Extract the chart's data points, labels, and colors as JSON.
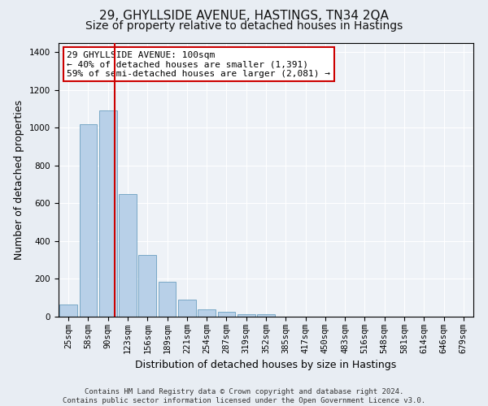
{
  "title": "29, GHYLLSIDE AVENUE, HASTINGS, TN34 2QA",
  "subtitle": "Size of property relative to detached houses in Hastings",
  "xlabel": "Distribution of detached houses by size in Hastings",
  "ylabel": "Number of detached properties",
  "categories": [
    "25sqm",
    "58sqm",
    "90sqm",
    "123sqm",
    "156sqm",
    "189sqm",
    "221sqm",
    "254sqm",
    "287sqm",
    "319sqm",
    "352sqm",
    "385sqm",
    "417sqm",
    "450sqm",
    "483sqm",
    "516sqm",
    "548sqm",
    "581sqm",
    "614sqm",
    "646sqm",
    "679sqm"
  ],
  "values": [
    65,
    1020,
    1090,
    650,
    325,
    185,
    90,
    40,
    25,
    15,
    12,
    0,
    0,
    0,
    0,
    0,
    0,
    0,
    0,
    0,
    0
  ],
  "bar_color": "#b8d0e8",
  "bar_edge_color": "#6a9fc0",
  "vline_color": "#cc0000",
  "vline_xindex": 2.35,
  "annotation_text": "29 GHYLLSIDE AVENUE: 100sqm\n← 40% of detached houses are smaller (1,391)\n59% of semi-detached houses are larger (2,081) →",
  "annotation_box_color": "#ffffff",
  "annotation_box_edge": "#cc0000",
  "ylim": [
    0,
    1450
  ],
  "yticks": [
    0,
    200,
    400,
    600,
    800,
    1000,
    1200,
    1400
  ],
  "footer_text": "Contains HM Land Registry data © Crown copyright and database right 2024.\nContains public sector information licensed under the Open Government Licence v3.0.",
  "background_color": "#e8edf3",
  "plot_bg_color": "#eef2f7",
  "title_fontsize": 11,
  "subtitle_fontsize": 10,
  "axis_label_fontsize": 9,
  "tick_fontsize": 7.5
}
